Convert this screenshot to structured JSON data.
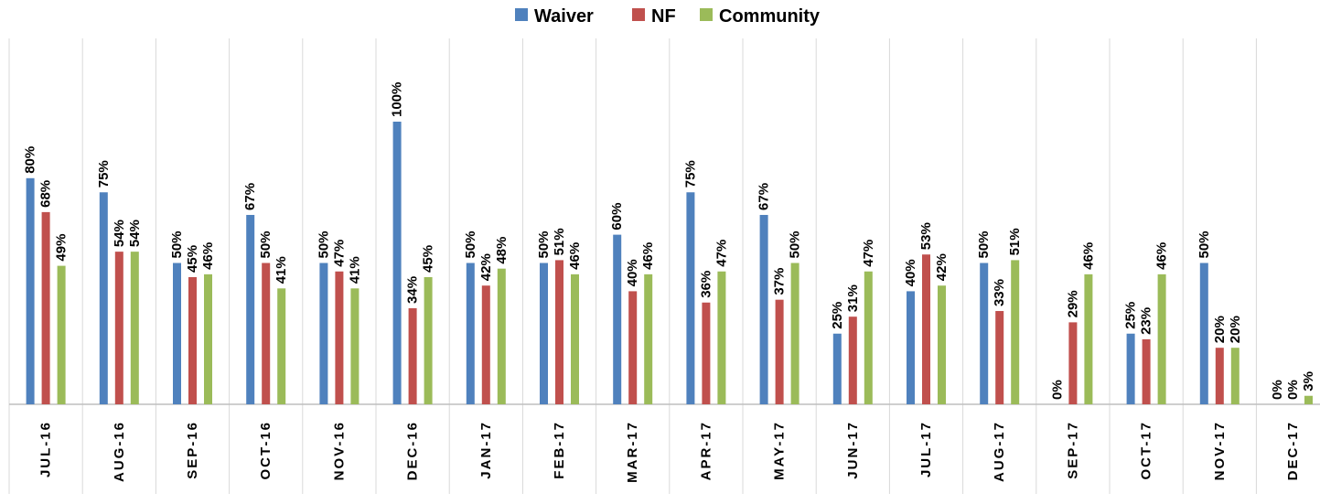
{
  "chart_data": {
    "type": "bar",
    "categories": [
      "JUL-16",
      "AUG-16",
      "SEP-16",
      "OCT-16",
      "NOV-16",
      "DEC-16",
      "JAN-17",
      "FEB-17",
      "MAR-17",
      "APR-17",
      "MAY-17",
      "JUN-17",
      "JUL-17",
      "AUG-17",
      "SEP-17",
      "OCT-17",
      "NOV-17",
      "DEC-17"
    ],
    "series": [
      {
        "name": "Waiver",
        "color": "#4f81bd",
        "values": [
          80,
          75,
          50,
          67,
          50,
          100,
          50,
          50,
          60,
          75,
          67,
          25,
          40,
          50,
          0,
          25,
          50,
          0
        ],
        "value_labels": [
          "80%",
          "75%",
          "50%",
          "67%",
          "50%",
          "100%",
          "50%",
          "50%",
          "60%",
          "75%",
          "67%",
          "25%",
          "40%",
          "50%",
          "0%",
          "25%",
          "50%",
          "0%"
        ]
      },
      {
        "name": "NF",
        "color": "#c0504d",
        "values": [
          68,
          54,
          45,
          50,
          47,
          34,
          42,
          51,
          40,
          36,
          37,
          31,
          53,
          33,
          29,
          23,
          20,
          0
        ],
        "value_labels": [
          "68%",
          "54%",
          "45%",
          "50%",
          "47%",
          "34%",
          "42%",
          "51%",
          "40%",
          "36%",
          "37%",
          "31%",
          "53%",
          "33%",
          "29%",
          "23%",
          "20%",
          "0%"
        ]
      },
      {
        "name": "Community",
        "color": "#9bbb59",
        "values": [
          49,
          54,
          46,
          41,
          41,
          45,
          48,
          46,
          46,
          47,
          50,
          47,
          42,
          51,
          46,
          46,
          20,
          3
        ],
        "value_labels": [
          "49%",
          "54%",
          "46%",
          "41%",
          "41%",
          "45%",
          "48%",
          "46%",
          "46%",
          "47%",
          "50%",
          "47%",
          "42%",
          "51%",
          "46%",
          "46%",
          "20%",
          "3%"
        ]
      }
    ],
    "legend": "top"
  }
}
